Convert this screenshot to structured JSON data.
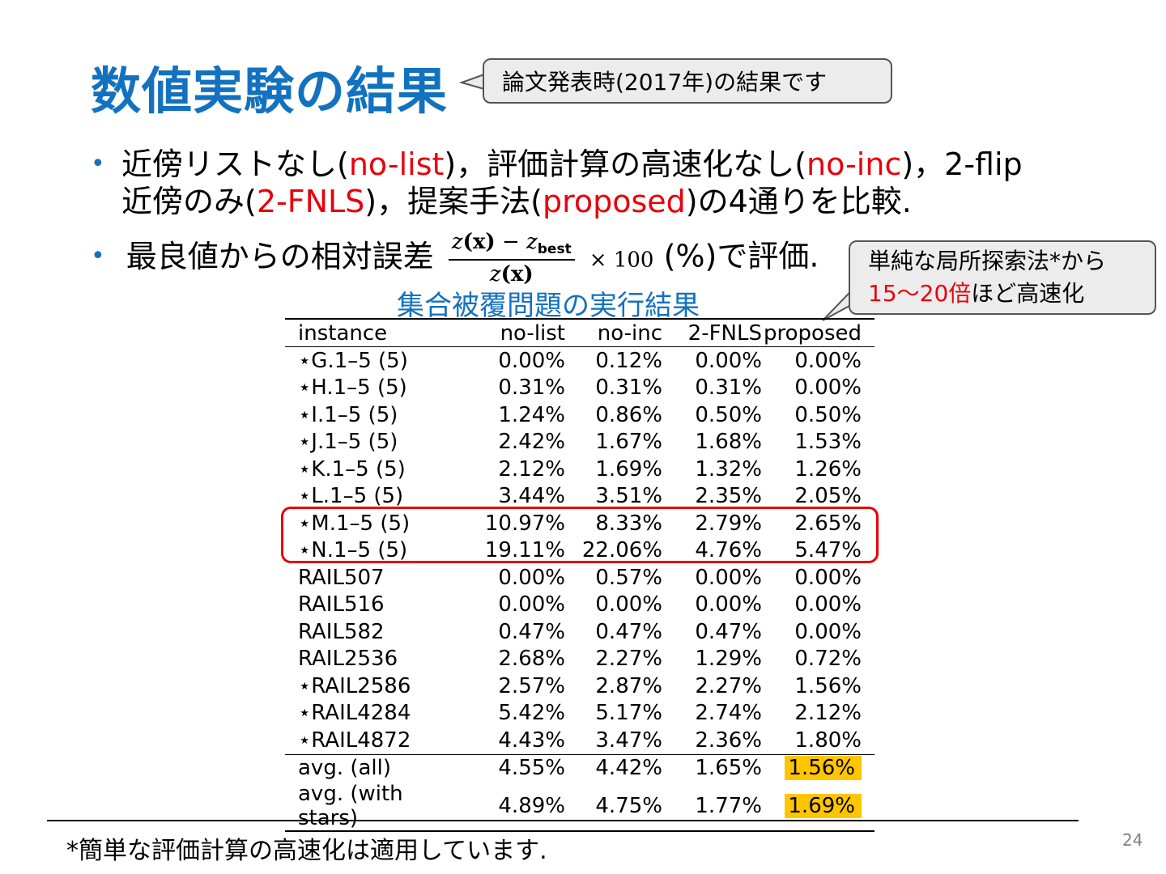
{
  "title": "数値実験の結果",
  "callout_top": "論文発表時(2017年)の結果です",
  "callout_right": {
    "line1": "単純な局所探索法*から",
    "line2_red": "15～20倍",
    "line2_rest": "ほど高速化"
  },
  "bullet1": {
    "l1_a": "近傍リストなし(",
    "l1_b": "no-list",
    "l1_c": ")，評価計算の高速化なし(",
    "l1_d": "no-inc",
    "l1_e": ")，2-flip",
    "l2_a": "近傍のみ(",
    "l2_b": "2-FNLS",
    "l2_c": ")，提案手法(",
    "l2_d": "proposed",
    "l2_e": ")の4通りを比較."
  },
  "bullet2": {
    "pre": "最良値からの相対誤差",
    "num_z": "z",
    "num_x": "(x)",
    "num_minus": " − ",
    "num_zbest": "z",
    "num_best_sub": "best",
    "den_z": "z",
    "den_x": "(x)",
    "times": "× 100",
    "post": " (%)で評価."
  },
  "table_title": "集合被覆問題の実行結果",
  "table": {
    "headers": [
      "instance",
      "no-list",
      "no-inc",
      "2-FNLS",
      "proposed"
    ],
    "rows": [
      [
        "⋆G.1–5 (5)",
        "0.00%",
        "0.12%",
        "0.00%",
        "0.00%"
      ],
      [
        "⋆H.1–5 (5)",
        "0.31%",
        "0.31%",
        "0.31%",
        "0.00%"
      ],
      [
        "⋆I.1–5 (5)",
        "1.24%",
        "0.86%",
        "0.50%",
        "0.50%"
      ],
      [
        "⋆J.1–5 (5)",
        "2.42%",
        "1.67%",
        "1.68%",
        "1.53%"
      ],
      [
        "⋆K.1–5 (5)",
        "2.12%",
        "1.69%",
        "1.32%",
        "1.26%"
      ],
      [
        "⋆L.1–5 (5)",
        "3.44%",
        "3.51%",
        "2.35%",
        "2.05%"
      ],
      [
        "⋆M.1–5 (5)",
        "10.97%",
        "8.33%",
        "2.79%",
        "2.65%"
      ],
      [
        "⋆N.1–5 (5)",
        "19.11%",
        "22.06%",
        "4.76%",
        "5.47%"
      ],
      [
        "RAIL507",
        "0.00%",
        "0.57%",
        "0.00%",
        "0.00%"
      ],
      [
        "RAIL516",
        "0.00%",
        "0.00%",
        "0.00%",
        "0.00%"
      ],
      [
        "RAIL582",
        "0.47%",
        "0.47%",
        "0.47%",
        "0.00%"
      ],
      [
        "RAIL2536",
        "2.68%",
        "2.27%",
        "1.29%",
        "0.72%"
      ],
      [
        "⋆RAIL2586",
        "2.57%",
        "2.87%",
        "2.27%",
        "1.56%"
      ],
      [
        "⋆RAIL4284",
        "5.42%",
        "5.17%",
        "2.74%",
        "2.12%"
      ],
      [
        "⋆RAIL4872",
        "4.43%",
        "3.47%",
        "2.36%",
        "1.80%"
      ]
    ],
    "summary": [
      [
        "avg.  (all)",
        "4.55%",
        "4.42%",
        "1.65%",
        "1.56%"
      ],
      [
        "avg.  (with stars)",
        "4.89%",
        "4.75%",
        "1.77%",
        "1.69%"
      ]
    ]
  },
  "footnote": "*簡単な評価計算の高速化は適用しています.",
  "page_number": "24",
  "colors": {
    "title_blue": "#1372c0",
    "accent_red": "#e8000b",
    "highlight": "#ffc500"
  }
}
